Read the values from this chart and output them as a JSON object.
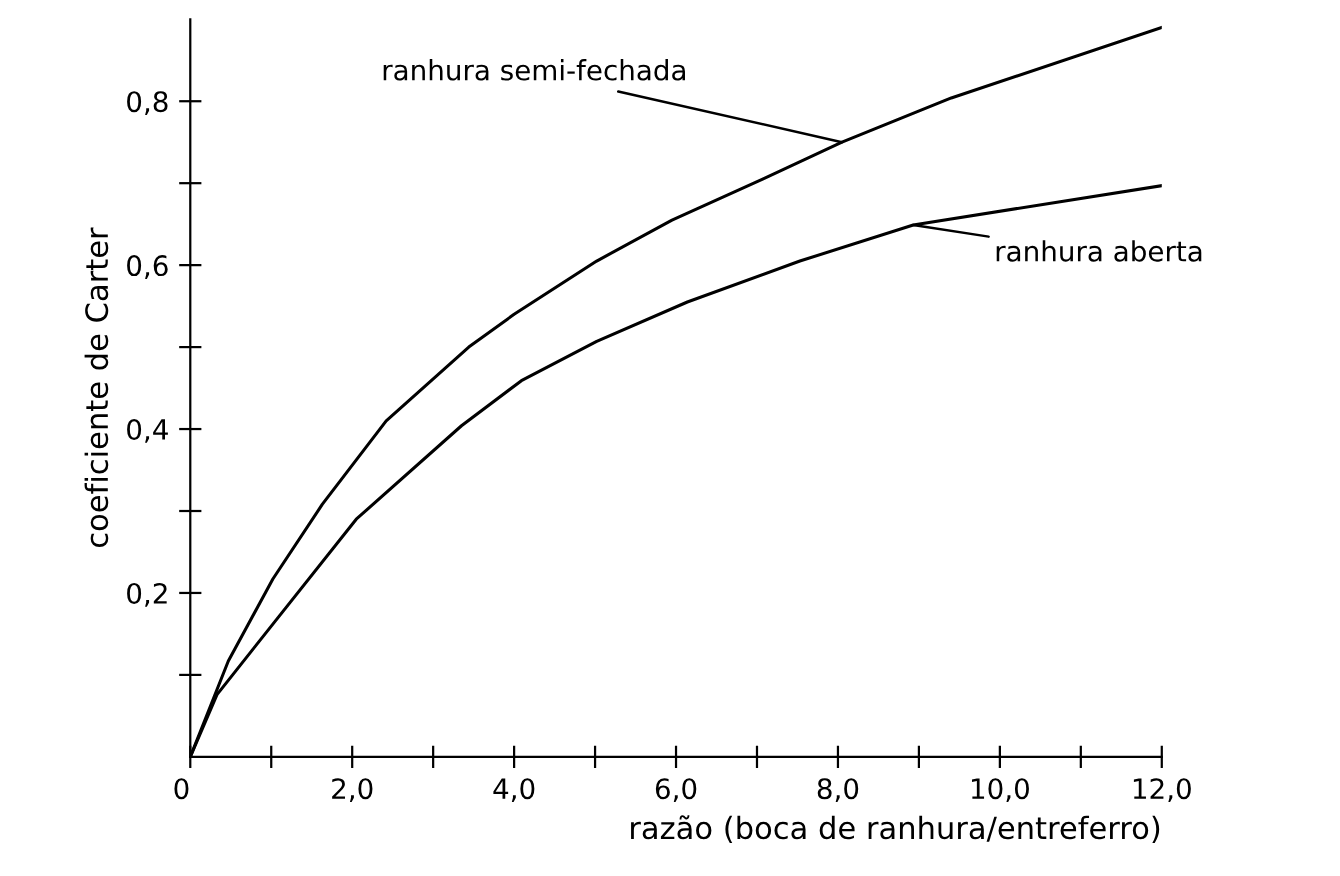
{
  "chart_data": {
    "type": "line",
    "xlabel": "razão (boca de ranhura/entreferro)",
    "ylabel": "coeficiente de Carter",
    "xlim": [
      0,
      12
    ],
    "ylim": [
      0,
      0.9
    ],
    "xticks": [
      {
        "value": 0,
        "label": "0"
      },
      {
        "value": 1,
        "label": null
      },
      {
        "value": 2,
        "label": "2,0"
      },
      {
        "value": 3,
        "label": null
      },
      {
        "value": 4,
        "label": "4,0"
      },
      {
        "value": 5,
        "label": null
      },
      {
        "value": 6,
        "label": "6,0"
      },
      {
        "value": 7,
        "label": null
      },
      {
        "value": 8,
        "label": "8,0"
      },
      {
        "value": 9,
        "label": null
      },
      {
        "value": 10,
        "label": "10,0"
      },
      {
        "value": 11,
        "label": null
      },
      {
        "value": 12,
        "label": "12,0"
      }
    ],
    "yticks": [
      {
        "value": 0.1,
        "label": null
      },
      {
        "value": 0.2,
        "label": "0,2"
      },
      {
        "value": 0.3,
        "label": null
      },
      {
        "value": 0.4,
        "label": "0,4"
      },
      {
        "value": 0.5,
        "label": null
      },
      {
        "value": 0.6,
        "label": "0,6"
      },
      {
        "value": 0.7,
        "label": null
      },
      {
        "value": 0.8,
        "label": "0,8"
      }
    ],
    "grid": false,
    "legend": false,
    "marker": "none",
    "line_style": "solid",
    "series": [
      {
        "color": "#000000",
        "x": [
          0,
          0.47,
          1.02,
          1.63,
          2.42,
          3.44,
          4.0,
          5.02,
          5.95,
          7.07,
          8.05,
          9.4,
          12.0
        ],
        "values": [
          0,
          0.117,
          0.217,
          0.308,
          0.41,
          0.5,
          0.54,
          0.605,
          0.655,
          0.705,
          0.75,
          0.804,
          0.89
        ]
      },
      {
        "color": "#000000",
        "x": [
          0,
          0.33,
          1.02,
          2.05,
          3.35,
          4.09,
          5.02,
          6.14,
          7.53,
          8.93,
          12.0
        ],
        "values": [
          0,
          0.076,
          0.162,
          0.29,
          0.404,
          0.459,
          0.507,
          0.555,
          0.605,
          0.649,
          0.697
        ]
      }
    ],
    "annotations": [
      {
        "text": "ranhura semi-fechada",
        "x": 8.05,
        "y": 0.75
      },
      {
        "text": "ranhura aberta",
        "x": 8.93,
        "y": 0.649
      }
    ]
  }
}
